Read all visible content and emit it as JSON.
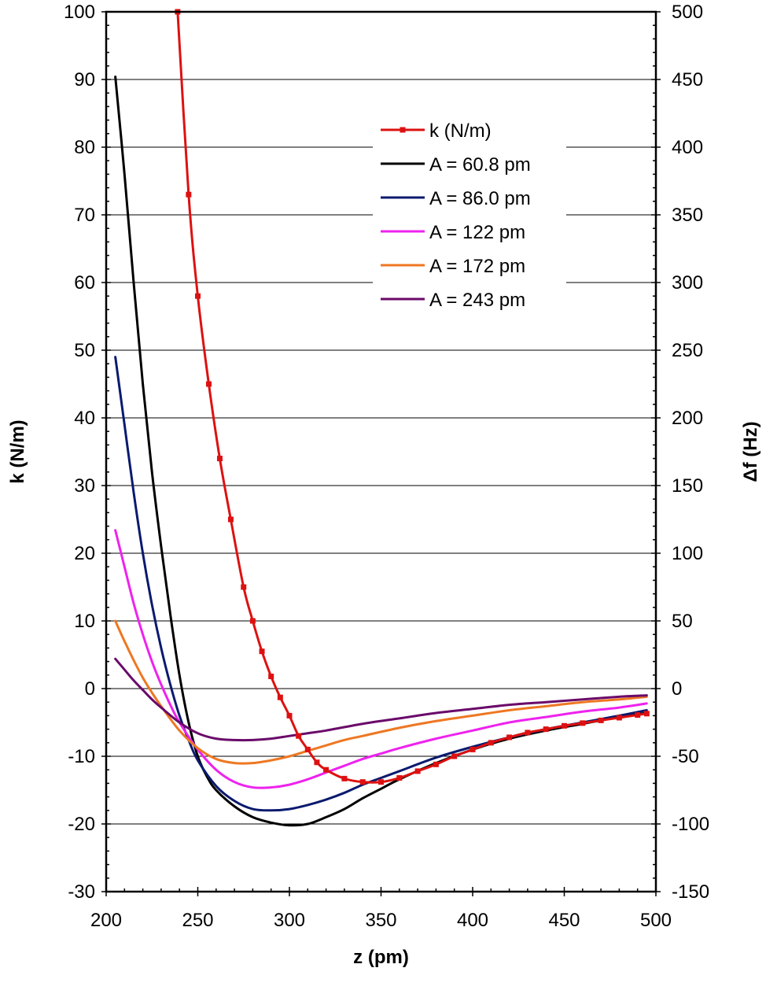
{
  "chart_data": {
    "type": "line",
    "xlabel": "z (pm)",
    "ylabel_left": "k (N/m)",
    "ylabel_right": "Δf (Hz)",
    "xlim": [
      200,
      500
    ],
    "ylim_left": [
      -30,
      100
    ],
    "ylim_right": [
      -150,
      500
    ],
    "x_ticks": [
      "200",
      "250",
      "300",
      "350",
      "400",
      "450",
      "500"
    ],
    "y_ticks_left": [
      "-30",
      "-20",
      "-10",
      "0",
      "10",
      "20",
      "30",
      "40",
      "50",
      "60",
      "70",
      "80",
      "90",
      "100"
    ],
    "y_ticks_right": [
      "-150",
      "-100",
      "-50",
      "0",
      "50",
      "100",
      "150",
      "200",
      "250",
      "300",
      "350",
      "400",
      "450",
      "500"
    ],
    "grid": "horizontal",
    "legend_position": "upper-right",
    "series": [
      {
        "name": "k (N/m)",
        "axis": "left",
        "color": "#dd1111",
        "markers": true,
        "x": [
          239,
          245,
          250,
          256,
          262,
          268,
          275,
          280,
          285,
          290,
          295,
          300,
          305,
          310,
          315,
          320,
          330,
          340,
          350,
          360,
          370,
          380,
          390,
          400,
          410,
          420,
          430,
          440,
          450,
          460,
          470,
          480,
          490,
          495
        ],
        "y": [
          100,
          73,
          58,
          45,
          34,
          25,
          15,
          10,
          5.5,
          1.8,
          -1.3,
          -4.0,
          -7.0,
          -9.0,
          -10.9,
          -12.0,
          -13.3,
          -13.8,
          -13.8,
          -13.2,
          -12.2,
          -11.2,
          -10.0,
          -9.0,
          -8.0,
          -7.2,
          -6.5,
          -6.0,
          -5.5,
          -5.1,
          -4.7,
          -4.3,
          -3.9,
          -3.7
        ]
      },
      {
        "name": "A = 60.8 pm",
        "axis": "right",
        "color": "#000000",
        "markers": false,
        "x": [
          205,
          210,
          215,
          220,
          225,
          230,
          235,
          240,
          245,
          250,
          255,
          260,
          270,
          280,
          290,
          300,
          310,
          320,
          330,
          340,
          350,
          360,
          380,
          400,
          420,
          440,
          460,
          480,
          495
        ],
        "y": [
          452,
          380,
          300,
          225,
          160,
          105,
          55,
          10,
          -25,
          -50,
          -65,
          -75,
          -87,
          -95,
          -99,
          -101,
          -100,
          -95,
          -89,
          -81,
          -74,
          -67,
          -55,
          -45,
          -37,
          -31,
          -26,
          -21,
          -18
        ]
      },
      {
        "name": "A = 86.0 pm",
        "axis": "right",
        "color": "#0a1a6e",
        "markers": false,
        "x": [
          205,
          210,
          215,
          220,
          225,
          230,
          235,
          240,
          245,
          250,
          260,
          270,
          280,
          290,
          300,
          310,
          320,
          330,
          340,
          350,
          360,
          380,
          400,
          420,
          440,
          460,
          480,
          495
        ],
        "y": [
          245,
          195,
          145,
          100,
          62,
          30,
          3,
          -20,
          -38,
          -53,
          -72,
          -83,
          -89,
          -90,
          -89,
          -86,
          -82,
          -77,
          -71,
          -66,
          -61,
          -51,
          -43,
          -36,
          -30,
          -25,
          -20,
          -16
        ]
      },
      {
        "name": "A = 122 pm",
        "axis": "right",
        "color": "#ee22ee",
        "markers": false,
        "x": [
          205,
          210,
          215,
          220,
          225,
          230,
          235,
          240,
          250,
          260,
          270,
          280,
          290,
          300,
          310,
          320,
          330,
          340,
          350,
          360,
          380,
          400,
          420,
          440,
          460,
          480,
          495
        ],
        "y": [
          117,
          90,
          63,
          40,
          20,
          3,
          -12,
          -25,
          -45,
          -60,
          -69,
          -73,
          -73,
          -71,
          -67,
          -62,
          -57,
          -52,
          -48,
          -44,
          -37,
          -31,
          -25,
          -21,
          -17,
          -14,
          -11
        ]
      },
      {
        "name": "A = 172 pm",
        "axis": "right",
        "color": "#ee7722",
        "markers": false,
        "x": [
          205,
          210,
          215,
          220,
          225,
          230,
          240,
          250,
          260,
          270,
          280,
          290,
          300,
          310,
          320,
          330,
          340,
          360,
          380,
          400,
          420,
          440,
          460,
          480,
          495
        ],
        "y": [
          50,
          35,
          21,
          8,
          -3,
          -13,
          -31,
          -44,
          -52,
          -55,
          -55,
          -53,
          -50,
          -46,
          -42,
          -38,
          -35,
          -29,
          -24,
          -20,
          -16,
          -13,
          -10,
          -8,
          -6
        ]
      },
      {
        "name": "A = 243 pm",
        "axis": "right",
        "color": "#6a0a6a",
        "markers": false,
        "x": [
          205,
          210,
          215,
          220,
          225,
          230,
          240,
          250,
          260,
          270,
          280,
          290,
          300,
          310,
          320,
          340,
          360,
          380,
          400,
          420,
          440,
          460,
          480,
          495
        ],
        "y": [
          22,
          14,
          6,
          -1,
          -8,
          -14,
          -25,
          -33,
          -37,
          -38,
          -38,
          -37,
          -35,
          -33,
          -31,
          -26,
          -22,
          -18,
          -15,
          -12,
          -10,
          -8,
          -6,
          -5
        ]
      }
    ]
  }
}
